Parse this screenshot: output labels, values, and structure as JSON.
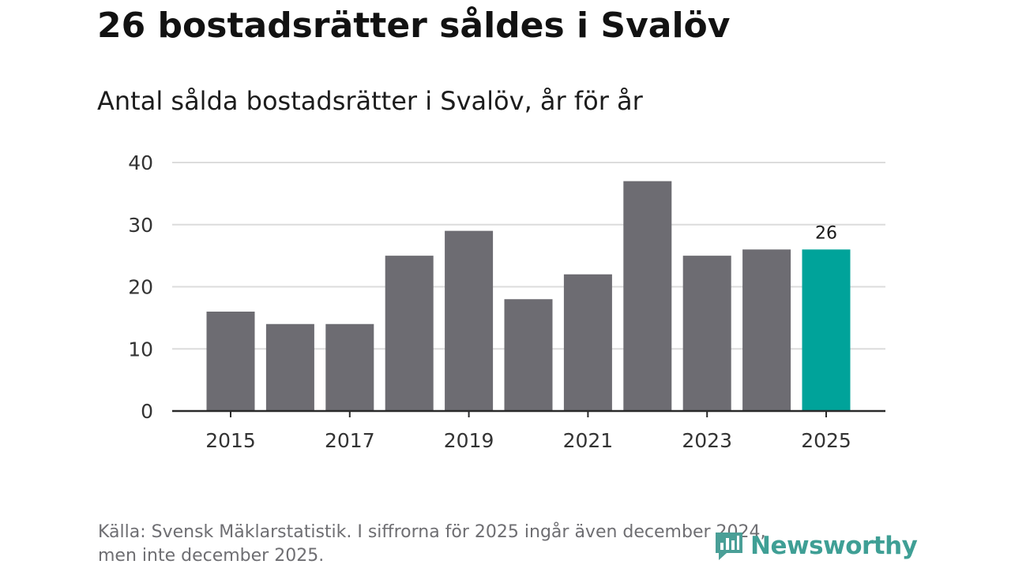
{
  "header": {
    "title": "26 bostadsrätter såldes i Svalöv",
    "subtitle": "Antal sålda bostadsrätter i Svalöv, år för år"
  },
  "footer": {
    "source_line1": "Källa: Svensk Mäklarstatistik. I siffrorna för 2025 ingår även december 2024,",
    "source_line2": "men inte december 2025."
  },
  "logo": {
    "name": "Newsworthy",
    "icon": "newsworthy-logo-icon"
  },
  "colors": {
    "bar": "#6d6c72",
    "highlight": "#00a39a",
    "grid": "#dcdcdc",
    "axis": "#2a2a2a",
    "logo": "#3f9f95"
  },
  "chart_data": {
    "type": "bar",
    "title": "26 bostadsrätter såldes i Svalöv",
    "subtitle": "Antal sålda bostadsrätter i Svalöv, år för år",
    "xlabel": "",
    "ylabel": "",
    "categories": [
      "2015",
      "2016",
      "2017",
      "2018",
      "2019",
      "2020",
      "2021",
      "2022",
      "2023",
      "2024",
      "2025"
    ],
    "values": [
      16,
      14,
      14,
      25,
      29,
      18,
      22,
      37,
      25,
      26,
      26
    ],
    "x_tick_labels": [
      "2015",
      "2017",
      "2019",
      "2021",
      "2023",
      "2025"
    ],
    "y_ticks": [
      0,
      10,
      20,
      30,
      40
    ],
    "ylim": [
      0,
      40
    ],
    "grid": true,
    "highlight_category": "2025",
    "data_labels": [
      {
        "category": "2025",
        "text": "26"
      }
    ]
  }
}
